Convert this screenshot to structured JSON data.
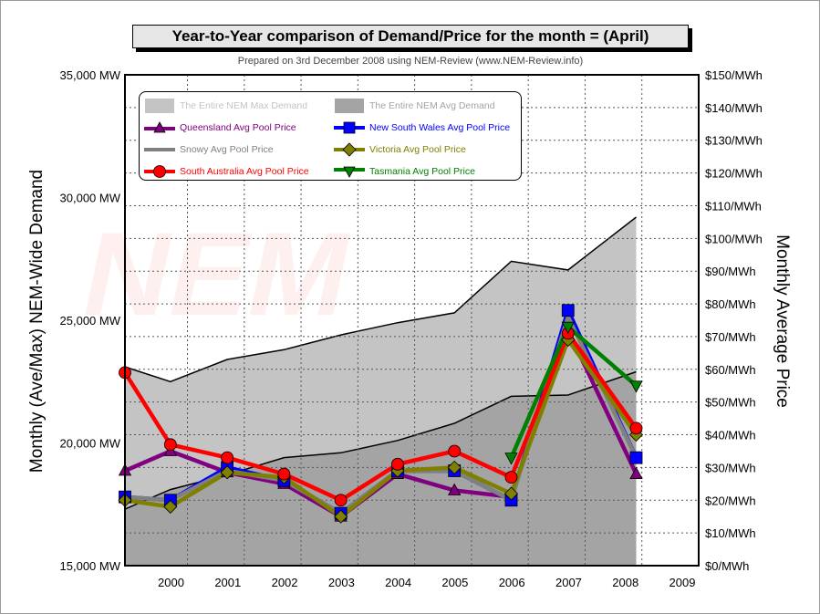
{
  "title": "Year-to-Year comparison of Demand/Price for the month = (April)",
  "subtitle": "Prepared on 3rd December 2008 using NEM-Review (www.NEM-Review.info)",
  "watermark": "NEM",
  "colors": {
    "max_demand": "#c4c4c4",
    "avg_demand": "#a4a4a4",
    "queensland": "#800080",
    "nsw": "#0000ff",
    "snowy": "#808080",
    "victoria": "#808000",
    "south_australia": "#ff0000",
    "tasmania": "#008000"
  },
  "chart_data": {
    "type": "area",
    "title": "Year-to-Year comparison of Demand/Price for the month = (April)",
    "ylabel": "Monthly (Ave/Max) NEM-Wide Demand",
    "y2label": "Monthly Average Price",
    "x_ticks": [
      "2000",
      "2001",
      "2002",
      "2003",
      "2004",
      "2005",
      "2006",
      "2007",
      "2008",
      "2009"
    ],
    "x": [
      1999.2,
      2000,
      2001,
      2002,
      2003,
      2004,
      2005,
      2006,
      2007,
      2008.2
    ],
    "xlim": [
      1999.2,
      2009.3
    ],
    "ylim": [
      15000,
      35000
    ],
    "y_ticks": [
      "15,000 MW",
      "20,000 MW",
      "25,000 MW",
      "30,000 MW",
      "35,000 MW"
    ],
    "y2lim": [
      0,
      150
    ],
    "y2_ticks": [
      "$0/MWh",
      "$10/MWh",
      "$20/MWh",
      "$30/MWh",
      "$40/MWh",
      "$50/MWh",
      "$60/MWh",
      "$70/MWh",
      "$80/MWh",
      "$90/MWh",
      "$100/MWh",
      "$110/MWh",
      "$120/MWh",
      "$130/MWh",
      "$140/MWh",
      "$150/MWh"
    ],
    "grid": true,
    "legend_position": "top-left",
    "demand_series": [
      {
        "name": "The Entire NEM Max  Demand",
        "axis": "left",
        "style": "area",
        "values": [
          23100,
          22500,
          23400,
          23800,
          24400,
          24900,
          25300,
          27400,
          27050,
          29200
        ]
      },
      {
        "name": "The Entire NEM Avg  Demand",
        "axis": "left",
        "style": "area",
        "values": [
          17300,
          18100,
          18700,
          19400,
          19600,
          20100,
          20800,
          21900,
          21950,
          22900
        ]
      }
    ],
    "price_series": [
      {
        "name": "Queensland Avg  Pool Price",
        "key": "queensland",
        "marker": "triangle-up",
        "values": [
          29,
          35,
          28.5,
          25,
          15,
          28,
          23,
          21,
          72,
          28
        ]
      },
      {
        "name": "New South Wales Avg  Pool Price",
        "key": "nsw",
        "marker": "square",
        "values": [
          21,
          20,
          30,
          26,
          16,
          29,
          29,
          20,
          78,
          33
        ]
      },
      {
        "name": "Snowy Avg  Pool Price",
        "key": "snowy",
        "marker": "none",
        "values": [
          21,
          20,
          29,
          26,
          16,
          29,
          29,
          20,
          76,
          33
        ]
      },
      {
        "name": "Victoria Avg  Pool Price",
        "key": "victoria",
        "marker": "diamond",
        "values": [
          20,
          18,
          28.5,
          27,
          15,
          29,
          30,
          22,
          69,
          40
        ]
      },
      {
        "name": "South Australia Avg  Pool Price",
        "key": "south_australia",
        "marker": "circle",
        "values": [
          59,
          37,
          33,
          28,
          20,
          31,
          35,
          27,
          71,
          42
        ]
      },
      {
        "name": "Tasmania Avg  Pool Price",
        "key": "tasmania",
        "marker": "triangle-down",
        "values": [
          null,
          null,
          null,
          null,
          null,
          null,
          null,
          33,
          73,
          55
        ]
      }
    ]
  }
}
